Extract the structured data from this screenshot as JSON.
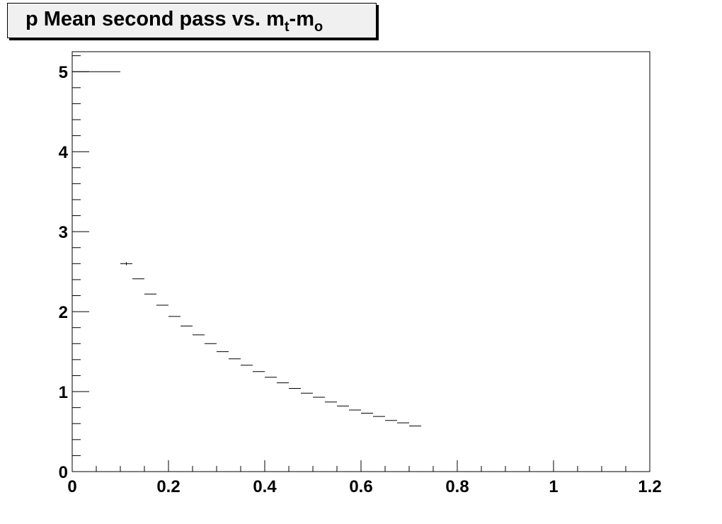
{
  "title": {
    "main": "p Mean second pass vs. m",
    "sub1": "t",
    "mid": "-m",
    "sub2": "o"
  },
  "colors": {
    "axis": "#000000",
    "marker": "#000000",
    "title_bg": "#f0f0f0"
  },
  "chart_data": {
    "type": "scatter",
    "title": "p Mean second pass vs. mt-mo",
    "xlabel": "",
    "ylabel": "",
    "xlim": [
      0,
      1.2
    ],
    "ylim": [
      0,
      5.25
    ],
    "grid": false,
    "xticks": [
      0,
      0.2,
      0.4,
      0.6,
      0.8,
      1,
      1.2
    ],
    "xtick_labels": [
      "0",
      "0.2",
      "0.4",
      "0.6",
      "0.8",
      "1",
      "1.2"
    ],
    "yticks": [
      0,
      1,
      2,
      3,
      4,
      5
    ],
    "ytick_labels": [
      "0",
      "1",
      "2",
      "3",
      "4",
      "5"
    ],
    "points": [
      {
        "x0": 0.0,
        "x1": 0.1,
        "y": 5.0,
        "yerr": 0.0
      },
      {
        "x0": 0.1,
        "x1": 0.125,
        "y": 2.6,
        "yerr": 0.02
      },
      {
        "x0": 0.125,
        "x1": 0.15,
        "y": 2.41,
        "yerr": 0.0
      },
      {
        "x0": 0.15,
        "x1": 0.175,
        "y": 2.22,
        "yerr": 0.0
      },
      {
        "x0": 0.175,
        "x1": 0.2,
        "y": 2.08,
        "yerr": 0.0
      },
      {
        "x0": 0.2,
        "x1": 0.225,
        "y": 1.94,
        "yerr": 0.0
      },
      {
        "x0": 0.225,
        "x1": 0.25,
        "y": 1.82,
        "yerr": 0.0
      },
      {
        "x0": 0.25,
        "x1": 0.275,
        "y": 1.71,
        "yerr": 0.0
      },
      {
        "x0": 0.275,
        "x1": 0.3,
        "y": 1.6,
        "yerr": 0.0
      },
      {
        "x0": 0.3,
        "x1": 0.325,
        "y": 1.5,
        "yerr": 0.0
      },
      {
        "x0": 0.325,
        "x1": 0.35,
        "y": 1.41,
        "yerr": 0.0
      },
      {
        "x0": 0.35,
        "x1": 0.375,
        "y": 1.33,
        "yerr": 0.0
      },
      {
        "x0": 0.375,
        "x1": 0.4,
        "y": 1.25,
        "yerr": 0.0
      },
      {
        "x0": 0.4,
        "x1": 0.425,
        "y": 1.18,
        "yerr": 0.0
      },
      {
        "x0": 0.425,
        "x1": 0.45,
        "y": 1.11,
        "yerr": 0.0
      },
      {
        "x0": 0.45,
        "x1": 0.475,
        "y": 1.04,
        "yerr": 0.0
      },
      {
        "x0": 0.475,
        "x1": 0.5,
        "y": 0.98,
        "yerr": 0.0
      },
      {
        "x0": 0.5,
        "x1": 0.525,
        "y": 0.93,
        "yerr": 0.0
      },
      {
        "x0": 0.525,
        "x1": 0.55,
        "y": 0.87,
        "yerr": 0.0
      },
      {
        "x0": 0.55,
        "x1": 0.575,
        "y": 0.82,
        "yerr": 0.0
      },
      {
        "x0": 0.575,
        "x1": 0.6,
        "y": 0.77,
        "yerr": 0.0
      },
      {
        "x0": 0.6,
        "x1": 0.625,
        "y": 0.73,
        "yerr": 0.0
      },
      {
        "x0": 0.625,
        "x1": 0.65,
        "y": 0.69,
        "yerr": 0.0
      },
      {
        "x0": 0.65,
        "x1": 0.675,
        "y": 0.64,
        "yerr": 0.0
      },
      {
        "x0": 0.675,
        "x1": 0.7,
        "y": 0.61,
        "yerr": 0.0
      },
      {
        "x0": 0.7,
        "x1": 0.725,
        "y": 0.57,
        "yerr": 0.0
      }
    ]
  }
}
